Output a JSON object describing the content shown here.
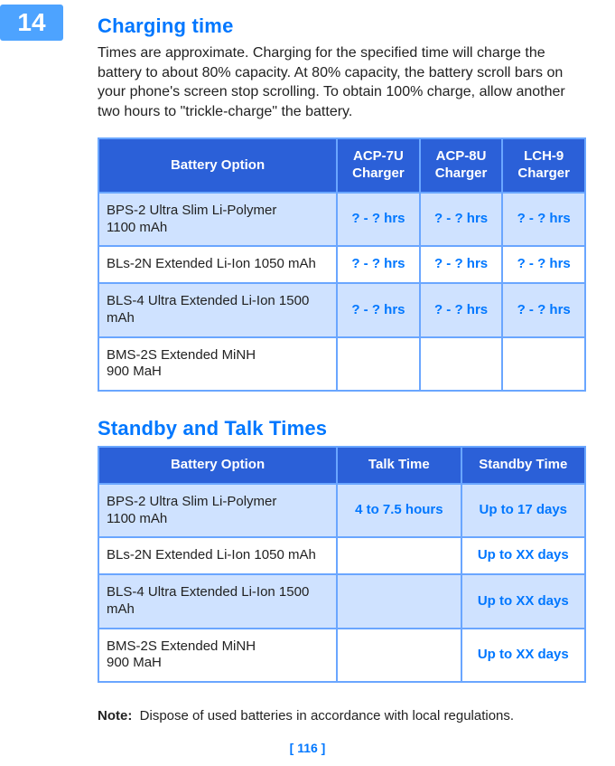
{
  "page": {
    "tab_number": "14",
    "footer": "[ 116 ]"
  },
  "section1": {
    "title": "Charging time",
    "intro": "Times are approximate. Charging for the specified time will charge the battery to about 80% capacity. At 80% capacity, the battery scroll bars on your phone's screen stop scrolling. To obtain 100% charge, allow another two hours to \"trickle-charge\" the battery."
  },
  "table1": {
    "headers": {
      "c0": "Battery Option",
      "c1": "ACP-7U Charger",
      "c2": "ACP-8U Charger",
      "c3": "LCH-9 Charger"
    },
    "rows": [
      {
        "shade": true,
        "c0": "BPS-2 Ultra Slim Li-Polymer\n1100 mAh",
        "c1": "? - ? hrs",
        "c2": "? - ? hrs",
        "c3": "? - ? hrs"
      },
      {
        "shade": false,
        "c0": "BLs-2N Extended Li-Ion 1050 mAh",
        "c1": "? - ? hrs",
        "c2": "? - ? hrs",
        "c3": "? - ? hrs"
      },
      {
        "shade": true,
        "c0": "BLS-4 Ultra Extended Li-Ion 1500 mAh",
        "c1": "? - ? hrs",
        "c2": "? - ? hrs",
        "c3": "? - ? hrs"
      },
      {
        "shade": false,
        "c0": "BMS-2S Extended MiNH\n900 MaH",
        "c1": "",
        "c2": "",
        "c3": ""
      }
    ]
  },
  "section2": {
    "title": "Standby and Talk Times"
  },
  "table2": {
    "headers": {
      "c0": "Battery Option",
      "c1": "Talk Time",
      "c2": "Standby Time"
    },
    "rows": [
      {
        "shade": true,
        "c0": "BPS-2 Ultra Slim Li-Polymer\n1100 mAh",
        "c1": "4 to 7.5 hours",
        "c2": "Up to 17 days"
      },
      {
        "shade": false,
        "c0": "BLs-2N Extended Li-Ion 1050 mAh",
        "c1": "",
        "c2": "Up to XX days"
      },
      {
        "shade": true,
        "c0": "BLS-4 Ultra Extended Li-Ion 1500 mAh",
        "c1": "",
        "c2": "Up to XX days"
      },
      {
        "shade": false,
        "c0": "BMS-2S Extended MiNH\n900 MaH",
        "c1": "",
        "c2": "Up to XX days"
      }
    ]
  },
  "note": {
    "label": "Note:",
    "text": "Dispose of used batteries in accordance with local regulations."
  },
  "layout": {
    "table1_col_widths": [
      "49%",
      "17%",
      "17%",
      "17%"
    ],
    "table2_col_widths": [
      "49%",
      "25.5%",
      "25.5%"
    ]
  }
}
